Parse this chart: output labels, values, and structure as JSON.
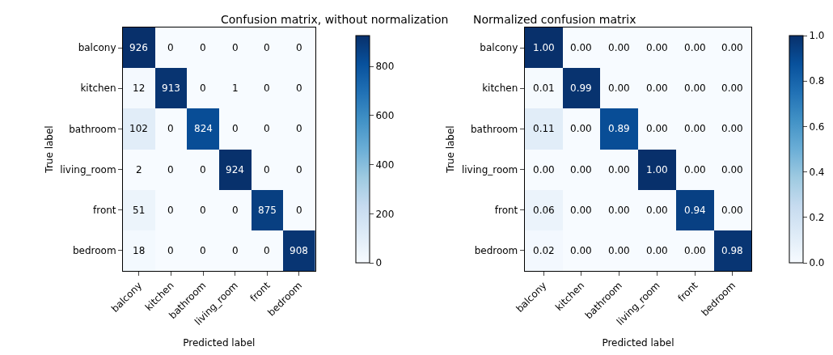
{
  "chart_data": [
    {
      "type": "heatmap",
      "title": "Confusion matrix, without normalization",
      "xlabel": "Predicted label",
      "ylabel": "True label",
      "categories": [
        "balcony",
        "kitchen",
        "bathroom",
        "living_room",
        "front",
        "bedroom"
      ],
      "y_categories": [
        "balcony",
        "kitchen",
        "bathroom",
        "living_room",
        "front",
        "bedroom"
      ],
      "cells": [
        [
          926,
          0,
          0,
          0,
          0,
          0
        ],
        [
          12,
          913,
          0,
          1,
          0,
          0
        ],
        [
          102,
          0,
          824,
          0,
          0,
          0
        ],
        [
          2,
          0,
          0,
          924,
          0,
          0
        ],
        [
          51,
          0,
          0,
          0,
          875,
          0
        ],
        [
          18,
          0,
          0,
          0,
          0,
          908
        ]
      ],
      "clim": [
        0,
        926
      ],
      "cticks": [
        0,
        200,
        400,
        600,
        800
      ],
      "data_labels": true
    },
    {
      "type": "heatmap",
      "title": "Normalized confusion matrix",
      "xlabel": "Predicted label",
      "ylabel": "True label",
      "categories": [
        "balcony",
        "kitchen",
        "bathroom",
        "living_room",
        "front",
        "bedroom"
      ],
      "y_categories": [
        "balcony",
        "kitchen",
        "bathroom",
        "living_room",
        "front",
        "bedroom"
      ],
      "cells": [
        [
          1.0,
          0.0,
          0.0,
          0.0,
          0.0,
          0.0
        ],
        [
          0.01,
          0.99,
          0.0,
          0.0,
          0.0,
          0.0
        ],
        [
          0.11,
          0.0,
          0.89,
          0.0,
          0.0,
          0.0
        ],
        [
          0.0,
          0.0,
          0.0,
          1.0,
          0.0,
          0.0
        ],
        [
          0.06,
          0.0,
          0.0,
          0.0,
          0.94,
          0.0
        ],
        [
          0.02,
          0.0,
          0.0,
          0.0,
          0.0,
          0.98
        ]
      ],
      "cell_labels": [
        [
          "1.00",
          "0.00",
          "0.00",
          "0.00",
          "0.00",
          "0.00"
        ],
        [
          "0.01",
          "0.99",
          "0.00",
          "0.00",
          "0.00",
          "0.00"
        ],
        [
          "0.11",
          "0.00",
          "0.89",
          "0.00",
          "0.00",
          "0.00"
        ],
        [
          "0.00",
          "0.00",
          "0.00",
          "1.00",
          "0.00",
          "0.00"
        ],
        [
          "0.06",
          "0.00",
          "0.00",
          "0.00",
          "0.94",
          "0.00"
        ],
        [
          "0.02",
          "0.00",
          "0.00",
          "0.00",
          "0.00",
          "0.98"
        ]
      ],
      "clim": [
        0,
        1.0
      ],
      "cticks": [
        {
          "value": 0,
          "label": "0.0"
        },
        {
          "value": 0.2,
          "label": "0.2"
        },
        {
          "value": 0.4,
          "label": "0.4"
        },
        {
          "value": 0.6,
          "label": "0.6"
        },
        {
          "value": 0.8,
          "label": "0.8"
        },
        {
          "value": 1.0,
          "label": "1.0"
        }
      ]
    }
  ]
}
